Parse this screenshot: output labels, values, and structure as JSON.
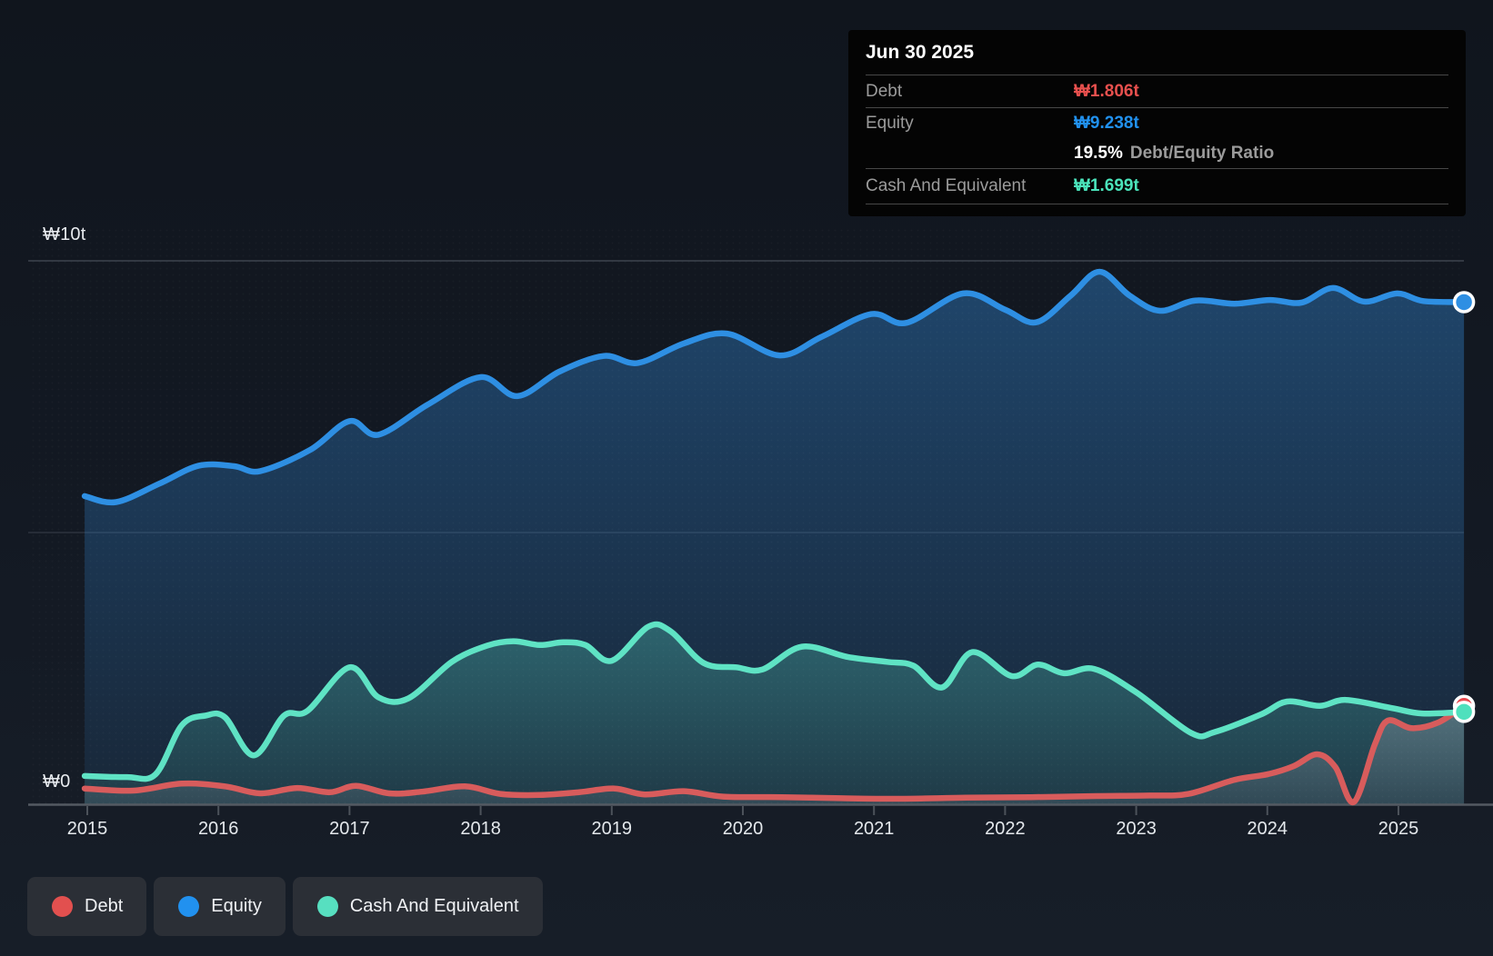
{
  "y_axis": {
    "top_label": "₩10t",
    "zero_label": "₩0"
  },
  "tooltip": {
    "date": "Jun 30 2025",
    "rows": [
      {
        "label": "Debt",
        "value": "₩1.806t",
        "color": "#e8504e"
      },
      {
        "label": "Equity",
        "value": "₩9.238t",
        "color": "#2191ef"
      },
      {
        "label": "Cash And Equivalent",
        "value": "₩1.699t",
        "color": "#4be4bb"
      }
    ],
    "ratio_value": "19.5%",
    "ratio_label": "Debt/Equity Ratio"
  },
  "legend": {
    "items": [
      {
        "label": "Debt",
        "color": "#e2504f"
      },
      {
        "label": "Equity",
        "color": "#2191ef"
      },
      {
        "label": "Cash And Equivalent",
        "color": "#57dfc0"
      }
    ]
  },
  "chart_data": {
    "type": "area",
    "x_ticks": [
      2015,
      2016,
      2017,
      2018,
      2019,
      2020,
      2021,
      2022,
      2023,
      2024,
      2025
    ],
    "x_tick_labels": [
      "2015",
      "2016",
      "2017",
      "2018",
      "2019",
      "2020",
      "2021",
      "2022",
      "2023",
      "2024",
      "2025"
    ],
    "y_ticks": [
      {
        "value": 10,
        "label": "₩10t"
      },
      {
        "value": 5,
        "label": ""
      },
      {
        "value": 0,
        "label": "₩0"
      }
    ],
    "ylim": [
      0,
      10
    ],
    "xlim": [
      2014.98,
      2025.5
    ],
    "y_unit": "trillion ₩ (t)",
    "legend_position": "bottom-left",
    "grid": true,
    "series": [
      {
        "name": "Equity",
        "line_color": "#2e8fe3",
        "marker_color": "#2e8fe3",
        "points": [
          [
            2014.98,
            5.67
          ],
          [
            2015.22,
            5.56
          ],
          [
            2015.55,
            5.9
          ],
          [
            2015.85,
            6.23
          ],
          [
            2016.12,
            6.22
          ],
          [
            2016.32,
            6.13
          ],
          [
            2016.7,
            6.52
          ],
          [
            2017.0,
            7.05
          ],
          [
            2017.22,
            6.8
          ],
          [
            2017.6,
            7.36
          ],
          [
            2018.0,
            7.86
          ],
          [
            2018.28,
            7.51
          ],
          [
            2018.6,
            7.96
          ],
          [
            2018.94,
            8.25
          ],
          [
            2019.2,
            8.12
          ],
          [
            2019.55,
            8.48
          ],
          [
            2019.88,
            8.66
          ],
          [
            2020.28,
            8.26
          ],
          [
            2020.6,
            8.6
          ],
          [
            2020.98,
            9.02
          ],
          [
            2021.25,
            8.86
          ],
          [
            2021.68,
            9.4
          ],
          [
            2022.0,
            9.1
          ],
          [
            2022.24,
            8.87
          ],
          [
            2022.5,
            9.36
          ],
          [
            2022.72,
            9.8
          ],
          [
            2022.95,
            9.36
          ],
          [
            2023.18,
            9.08
          ],
          [
            2023.45,
            9.27
          ],
          [
            2023.75,
            9.21
          ],
          [
            2024.02,
            9.28
          ],
          [
            2024.26,
            9.23
          ],
          [
            2024.5,
            9.5
          ],
          [
            2024.74,
            9.25
          ],
          [
            2024.99,
            9.4
          ],
          [
            2025.19,
            9.26
          ],
          [
            2025.5,
            9.24
          ]
        ]
      },
      {
        "name": "Cash And Equivalent",
        "line_color": "#5fe3c4",
        "marker_color": "#4fe0bd",
        "points": [
          [
            2014.98,
            0.52
          ],
          [
            2015.3,
            0.5
          ],
          [
            2015.52,
            0.55
          ],
          [
            2015.72,
            1.45
          ],
          [
            2015.9,
            1.63
          ],
          [
            2016.05,
            1.6
          ],
          [
            2016.27,
            0.9
          ],
          [
            2016.5,
            1.63
          ],
          [
            2016.68,
            1.72
          ],
          [
            2017.0,
            2.52
          ],
          [
            2017.22,
            1.97
          ],
          [
            2017.45,
            1.95
          ],
          [
            2017.78,
            2.62
          ],
          [
            2018.05,
            2.92
          ],
          [
            2018.25,
            3.0
          ],
          [
            2018.45,
            2.93
          ],
          [
            2018.63,
            2.98
          ],
          [
            2018.8,
            2.93
          ],
          [
            2019.0,
            2.64
          ],
          [
            2019.28,
            3.27
          ],
          [
            2019.45,
            3.18
          ],
          [
            2019.7,
            2.6
          ],
          [
            2019.95,
            2.52
          ],
          [
            2020.15,
            2.48
          ],
          [
            2020.45,
            2.9
          ],
          [
            2020.8,
            2.71
          ],
          [
            2021.1,
            2.62
          ],
          [
            2021.3,
            2.55
          ],
          [
            2021.52,
            2.15
          ],
          [
            2021.75,
            2.8
          ],
          [
            2022.05,
            2.36
          ],
          [
            2022.25,
            2.57
          ],
          [
            2022.45,
            2.41
          ],
          [
            2022.68,
            2.49
          ],
          [
            2023.0,
            2.06
          ],
          [
            2023.42,
            1.31
          ],
          [
            2023.6,
            1.33
          ],
          [
            2023.95,
            1.65
          ],
          [
            2024.15,
            1.89
          ],
          [
            2024.4,
            1.81
          ],
          [
            2024.6,
            1.92
          ],
          [
            2024.95,
            1.77
          ],
          [
            2025.18,
            1.67
          ],
          [
            2025.5,
            1.7
          ]
        ]
      },
      {
        "name": "Debt",
        "line_color": "#d85c5c",
        "marker_color": "#e8484f",
        "points": [
          [
            2014.98,
            0.29
          ],
          [
            2015.35,
            0.25
          ],
          [
            2015.72,
            0.38
          ],
          [
            2016.05,
            0.33
          ],
          [
            2016.32,
            0.2
          ],
          [
            2016.6,
            0.3
          ],
          [
            2016.85,
            0.22
          ],
          [
            2017.05,
            0.34
          ],
          [
            2017.3,
            0.2
          ],
          [
            2017.55,
            0.23
          ],
          [
            2017.88,
            0.33
          ],
          [
            2018.15,
            0.19
          ],
          [
            2018.45,
            0.17
          ],
          [
            2018.75,
            0.22
          ],
          [
            2019.02,
            0.29
          ],
          [
            2019.25,
            0.18
          ],
          [
            2019.55,
            0.24
          ],
          [
            2019.85,
            0.14
          ],
          [
            2020.3,
            0.13
          ],
          [
            2020.75,
            0.11
          ],
          [
            2021.2,
            0.1
          ],
          [
            2021.7,
            0.12
          ],
          [
            2022.2,
            0.13
          ],
          [
            2022.7,
            0.15
          ],
          [
            2023.1,
            0.16
          ],
          [
            2023.4,
            0.19
          ],
          [
            2023.75,
            0.45
          ],
          [
            2024.0,
            0.55
          ],
          [
            2024.2,
            0.7
          ],
          [
            2024.38,
            0.92
          ],
          [
            2024.52,
            0.68
          ],
          [
            2024.66,
            0.04
          ],
          [
            2024.82,
            1.1
          ],
          [
            2024.92,
            1.54
          ],
          [
            2025.1,
            1.4
          ],
          [
            2025.3,
            1.5
          ],
          [
            2025.5,
            1.81
          ]
        ]
      }
    ]
  }
}
